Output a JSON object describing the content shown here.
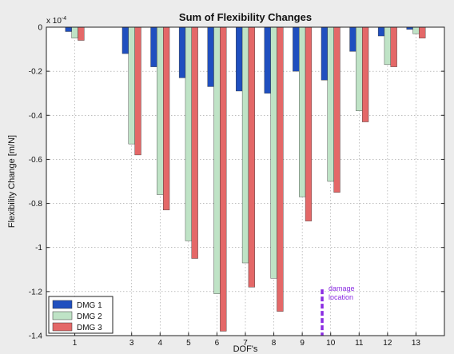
{
  "chart_data": {
    "type": "bar",
    "title": "Sum of Flexibility Changes",
    "xlabel": "DOF's",
    "ylabel": "Flexibility Change [m/N]",
    "y_multiplier": "x 10",
    "y_multiplier_exponent": "-4",
    "ylim": [
      -1.4,
      0
    ],
    "yticks": [
      "0",
      "-0.2",
      "-0.4",
      "-0.6",
      "-0.8",
      "-1",
      "-1.2",
      "-1.4"
    ],
    "ytick_values": [
      0,
      -0.2,
      -0.4,
      -0.6,
      -0.8,
      -1.0,
      -1.2,
      -1.4
    ],
    "xlim": [
      0,
      14
    ],
    "categories": [
      "1",
      "3",
      "4",
      "5",
      "6",
      "7",
      "8",
      "9",
      "10",
      "11",
      "12",
      "13"
    ],
    "x_values": [
      1,
      3,
      4,
      5,
      6,
      7,
      8,
      9,
      10,
      11,
      12,
      13
    ],
    "series": [
      {
        "name": "DMG 1",
        "color": "#1f4fbf",
        "values": [
          -0.02,
          -0.12,
          -0.18,
          -0.23,
          -0.27,
          -0.29,
          -0.3,
          -0.2,
          -0.24,
          -0.11,
          -0.04,
          -0.01
        ]
      },
      {
        "name": "DMG 2",
        "color": "#bfe3c6",
        "values": [
          -0.05,
          -0.53,
          -0.76,
          -0.97,
          -1.21,
          -1.07,
          -1.14,
          -0.77,
          -0.7,
          -0.38,
          -0.17,
          -0.03
        ]
      },
      {
        "name": "DMG 3",
        "color": "#e46868",
        "values": [
          -0.06,
          -0.58,
          -0.83,
          -1.05,
          -1.38,
          -1.18,
          -1.29,
          -0.88,
          -0.75,
          -0.43,
          -0.18,
          -0.05
        ]
      }
    ],
    "annotation": {
      "text_line1": "damage",
      "text_line2": "location",
      "x": 9.7,
      "color": "#8a2be2"
    },
    "grid": true,
    "legend_position": "bottom-left"
  }
}
